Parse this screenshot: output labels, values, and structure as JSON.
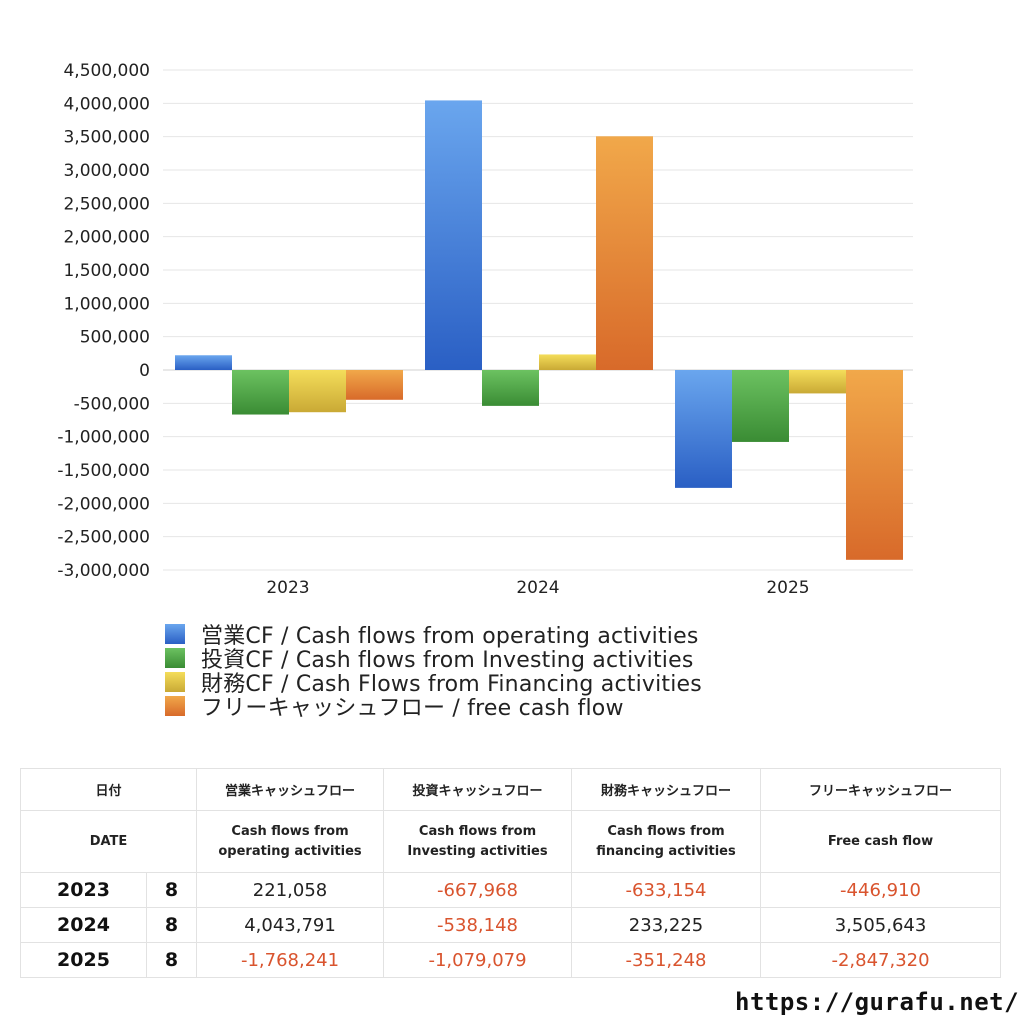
{
  "chart_data": {
    "type": "bar",
    "categories": [
      "2023",
      "2024",
      "2025"
    ],
    "ylim": [
      -3000000,
      4500000
    ],
    "yticks": [
      4500000,
      4000000,
      3500000,
      3000000,
      2500000,
      2000000,
      1500000,
      1000000,
      500000,
      0,
      -500000,
      -1000000,
      -1500000,
      -2000000,
      -2500000,
      -3000000
    ],
    "ytick_labels": [
      "4,500,000",
      "4,000,000",
      "3,500,000",
      "3,000,000",
      "2,500,000",
      "2,000,000",
      "1,500,000",
      "1,000,000",
      "500,000",
      "0",
      "-500,000",
      "-1,000,000",
      "-1,500,000",
      "-2,000,000",
      "-2,500,000",
      "-3,000,000"
    ],
    "grid": true,
    "legend_position": "bottom",
    "series": [
      {
        "name": "営業CF / Cash flows from operating activities",
        "values": [
          221058,
          4043791,
          -1768241
        ],
        "color_top": "#6aa6ee",
        "color_bottom": "#2a5fc4"
      },
      {
        "name": "投資CF / Cash flows from Investing activities",
        "values": [
          -667968,
          -538148,
          -1079079
        ],
        "color_top": "#6cc261",
        "color_bottom": "#3a8c34"
      },
      {
        "name": "財務CF / Cash Flows from Financing activities",
        "values": [
          -633154,
          233225,
          -351248
        ],
        "color_top": "#f4dd5a",
        "color_bottom": "#c9a935"
      },
      {
        "name": "フリーキャッシュフロー / free cash flow",
        "values": [
          -446910,
          3505643,
          -2847320
        ],
        "color_top": "#f1a84a",
        "color_bottom": "#d86a2a"
      }
    ]
  },
  "table": {
    "header_top": {
      "date": "日付",
      "operating": "営業キャッシュフロー",
      "investing": "投資キャッシュフロー",
      "financing": "財務キャッシュフロー",
      "free": "フリーキャッシュフロー"
    },
    "header_sub": {
      "date": "DATE",
      "operating_1": "Cash flows from",
      "operating_2": "operating activities",
      "investing_1": "Cash flows from",
      "investing_2": "Investing activities",
      "financing_1": "Cash flows from",
      "financing_2": "financing activities",
      "free": "Free cash flow"
    },
    "rows": [
      {
        "year": "2023",
        "month": "8",
        "operating": "221,058",
        "investing": "-667,968",
        "financing": "-633,154",
        "free": "-446,910"
      },
      {
        "year": "2024",
        "month": "8",
        "operating": "4,043,791",
        "investing": "-538,148",
        "financing": "233,225",
        "free": "3,505,643"
      },
      {
        "year": "2025",
        "month": "8",
        "operating": "-1,768,241",
        "investing": "-1,079,079",
        "financing": "-351,248",
        "free": "-2,847,320"
      }
    ],
    "negative_color": "#d9542e"
  },
  "footer": {
    "url": "https://gurafu.net/"
  }
}
